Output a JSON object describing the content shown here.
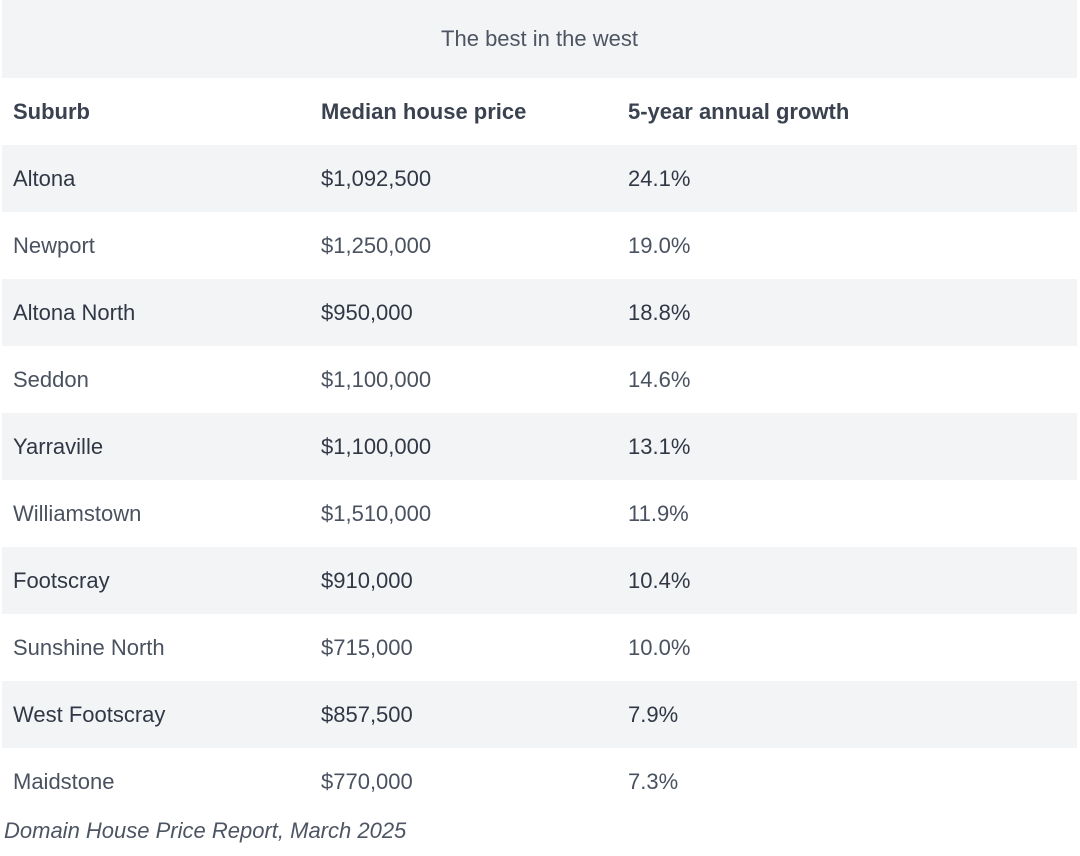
{
  "table": {
    "caption": "The best in the west",
    "headers": [
      "Suburb",
      "Median house price",
      "5-year annual growth"
    ],
    "rows": [
      [
        "Altona",
        "$1,092,500",
        "24.1%"
      ],
      [
        "Newport",
        "$1,250,000",
        "19.0%"
      ],
      [
        "Altona North",
        "$950,000",
        "18.8%"
      ],
      [
        "Seddon",
        "$1,100,000",
        "14.6%"
      ],
      [
        "Yarraville",
        "$1,100,000",
        "13.1%"
      ],
      [
        "Williamstown",
        "$1,510,000",
        "11.9%"
      ],
      [
        "Footscray",
        "$910,000",
        "10.4%"
      ],
      [
        "Sunshine North",
        "$715,000",
        "10.0%"
      ],
      [
        "West Footscray",
        "$857,500",
        "7.9%"
      ],
      [
        "Maidstone",
        "$770,000",
        "7.3%"
      ]
    ]
  },
  "source": "Domain House Price Report, March 2025"
}
